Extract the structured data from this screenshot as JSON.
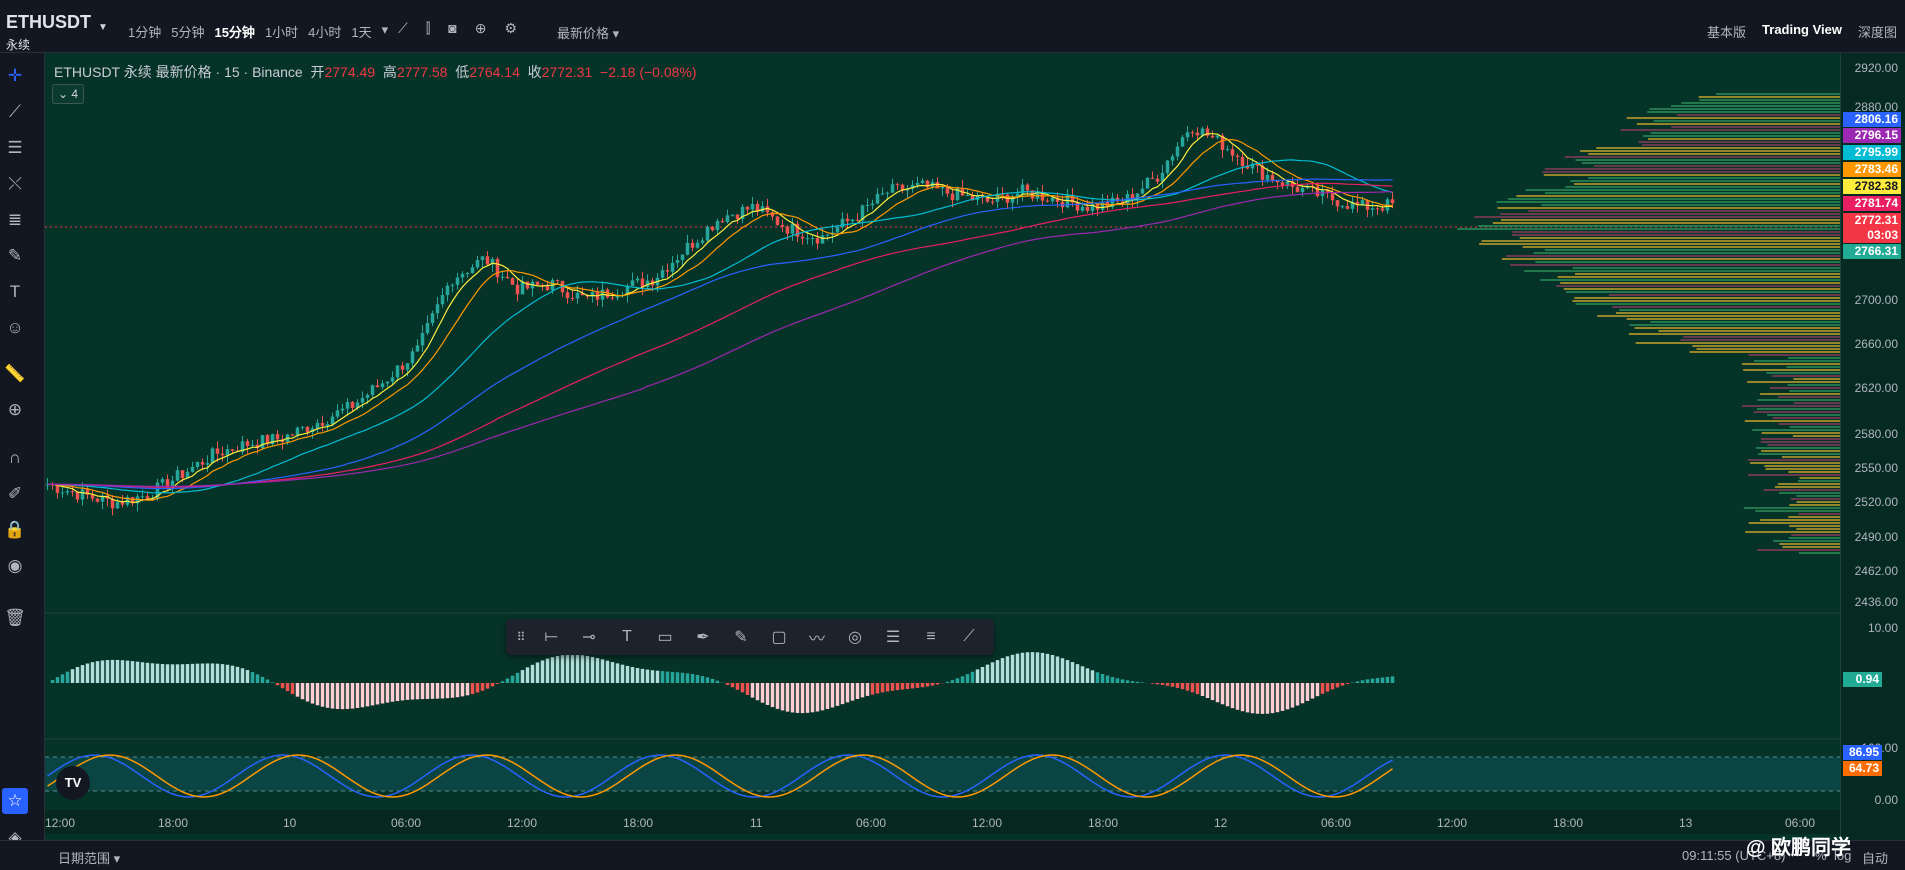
{
  "topbar": {
    "symbol": "ETHUSDT",
    "symbol_sub": "永续",
    "intervals": [
      "1分钟",
      "5分钟",
      "15分钟",
      "1小时",
      "4小时",
      "1天"
    ],
    "active_interval": "15分钟",
    "price_type": "最新价格",
    "views": [
      "基本版",
      "Trading View",
      "深度图"
    ],
    "active_view": "Trading View"
  },
  "legend": {
    "title": "ETHUSDT 永续 最新价格 · 15 · Binance",
    "open_label": "开",
    "open": "2774.49",
    "high_label": "高",
    "high": "2777.58",
    "low_label": "低",
    "low": "2764.14",
    "close_label": "收",
    "close": "2772.31",
    "change": "−2.18 (−0.08%)",
    "collapse_count": "4"
  },
  "price_axis": {
    "ticks": [
      "2920.00",
      "2880.00",
      "2700.00",
      "2660.00",
      "2620.00",
      "2580.00",
      "2550.00",
      "2520.00",
      "2490.00",
      "2462.00",
      "2436.00"
    ],
    "labels": [
      {
        "value": "2806.16",
        "color": "#2962ff"
      },
      {
        "value": "2796.15",
        "color": "#9c27b0"
      },
      {
        "value": "2795.99",
        "color": "#00bcd4"
      },
      {
        "value": "2783.46",
        "color": "#ff9800"
      },
      {
        "value": "2782.38",
        "color": "#ffeb3b"
      },
      {
        "value": "2781.74",
        "color": "#e91e63"
      },
      {
        "value": "2772.31",
        "color": "#f23645"
      },
      {
        "value": "03:03",
        "color": "#f23645"
      },
      {
        "value": "2766.31",
        "color": "#22ab94"
      }
    ],
    "macd_ticks": [
      "10.00",
      "0.00"
    ],
    "macd_value": "0.94",
    "stoch_ticks": [
      "100.00",
      "0.00"
    ],
    "stoch_k": "86.95",
    "stoch_d": "64.73"
  },
  "time_axis": {
    "ticks": [
      "12:00",
      "18:00",
      "10",
      "06:00",
      "12:00",
      "18:00",
      "11",
      "06:00",
      "12:00",
      "18:00",
      "12",
      "06:00",
      "12:00",
      "18:00",
      "13",
      "06:00"
    ]
  },
  "bottombar": {
    "date_range": "日期范围",
    "clock": "09:11:55 (UTC+8)",
    "pct": "%",
    "log": "log",
    "auto": "自动"
  },
  "watermark": "@ 欧鹏同学",
  "colors": {
    "up": "#26a69a",
    "down": "#ef5350",
    "bg": "#063328"
  },
  "chart_data": {
    "type": "line",
    "title": "ETHUSDT 永续 最新价格 · 15 · Binance",
    "series": [
      {
        "name": "",
        "values": [
          2500,
          2490,
          2482,
          2490,
          2510,
          2530,
          2540,
          2545,
          2560,
          2575,
          2600,
          2630,
          2700,
          2720,
          2690,
          2695,
          2680,
          2690,
          2700,
          2730,
          2760,
          2770,
          2750,
          2740,
          2760,
          2785,
          2790,
          2782,
          2775,
          2785,
          2778,
          2770,
          2775,
          2800,
          2850,
          2830,
          2805,
          2790,
          2780,
          2770,
          2772
        ]
      }
    ],
    "xlabel": "",
    "ylabel": "",
    "ylim": [
      2436,
      2920
    ]
  }
}
